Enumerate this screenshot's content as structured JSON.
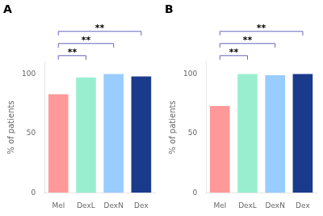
{
  "chart_data": [
    {
      "type": "bar",
      "title": "A",
      "categories": [
        "Mel",
        "DexL",
        "DexN",
        "Dex"
      ],
      "values": [
        83,
        97,
        100,
        98
      ],
      "colors": [
        "#FF9999",
        "#99EED0",
        "#99CCFF",
        "#1A3A8C"
      ],
      "ylabel": "% of patients",
      "ylim": [
        0,
        110
      ],
      "yticks": [
        0,
        50,
        100
      ],
      "grid": false,
      "annotations": [
        {
          "text": "**",
          "from": "Mel",
          "to": "DexL",
          "color": "#6666BB"
        },
        {
          "text": "**",
          "from": "Mel",
          "to": "DexN",
          "color": "#6666BB"
        },
        {
          "text": "**",
          "from": "Mel",
          "to": "Dex",
          "color": "#6666BB"
        }
      ]
    },
    {
      "type": "bar",
      "title": "B",
      "categories": [
        "Mel",
        "DexL",
        "DexN",
        "Dex"
      ],
      "values": [
        73,
        100,
        99,
        100
      ],
      "colors": [
        "#FF9999",
        "#99EED0",
        "#99CCFF",
        "#1A3A8C"
      ],
      "ylabel": "% of patients",
      "ylim": [
        0,
        110
      ],
      "yticks": [
        0,
        50,
        100
      ],
      "grid": false,
      "annotations": [
        {
          "text": "**",
          "from": "Mel",
          "to": "DexL",
          "color": "#6666BB"
        },
        {
          "text": "**",
          "from": "Mel",
          "to": "DexN",
          "color": "#6666BB"
        },
        {
          "text": "**",
          "from": "Mel",
          "to": "Dex",
          "color": "#6666BB"
        }
      ]
    }
  ]
}
